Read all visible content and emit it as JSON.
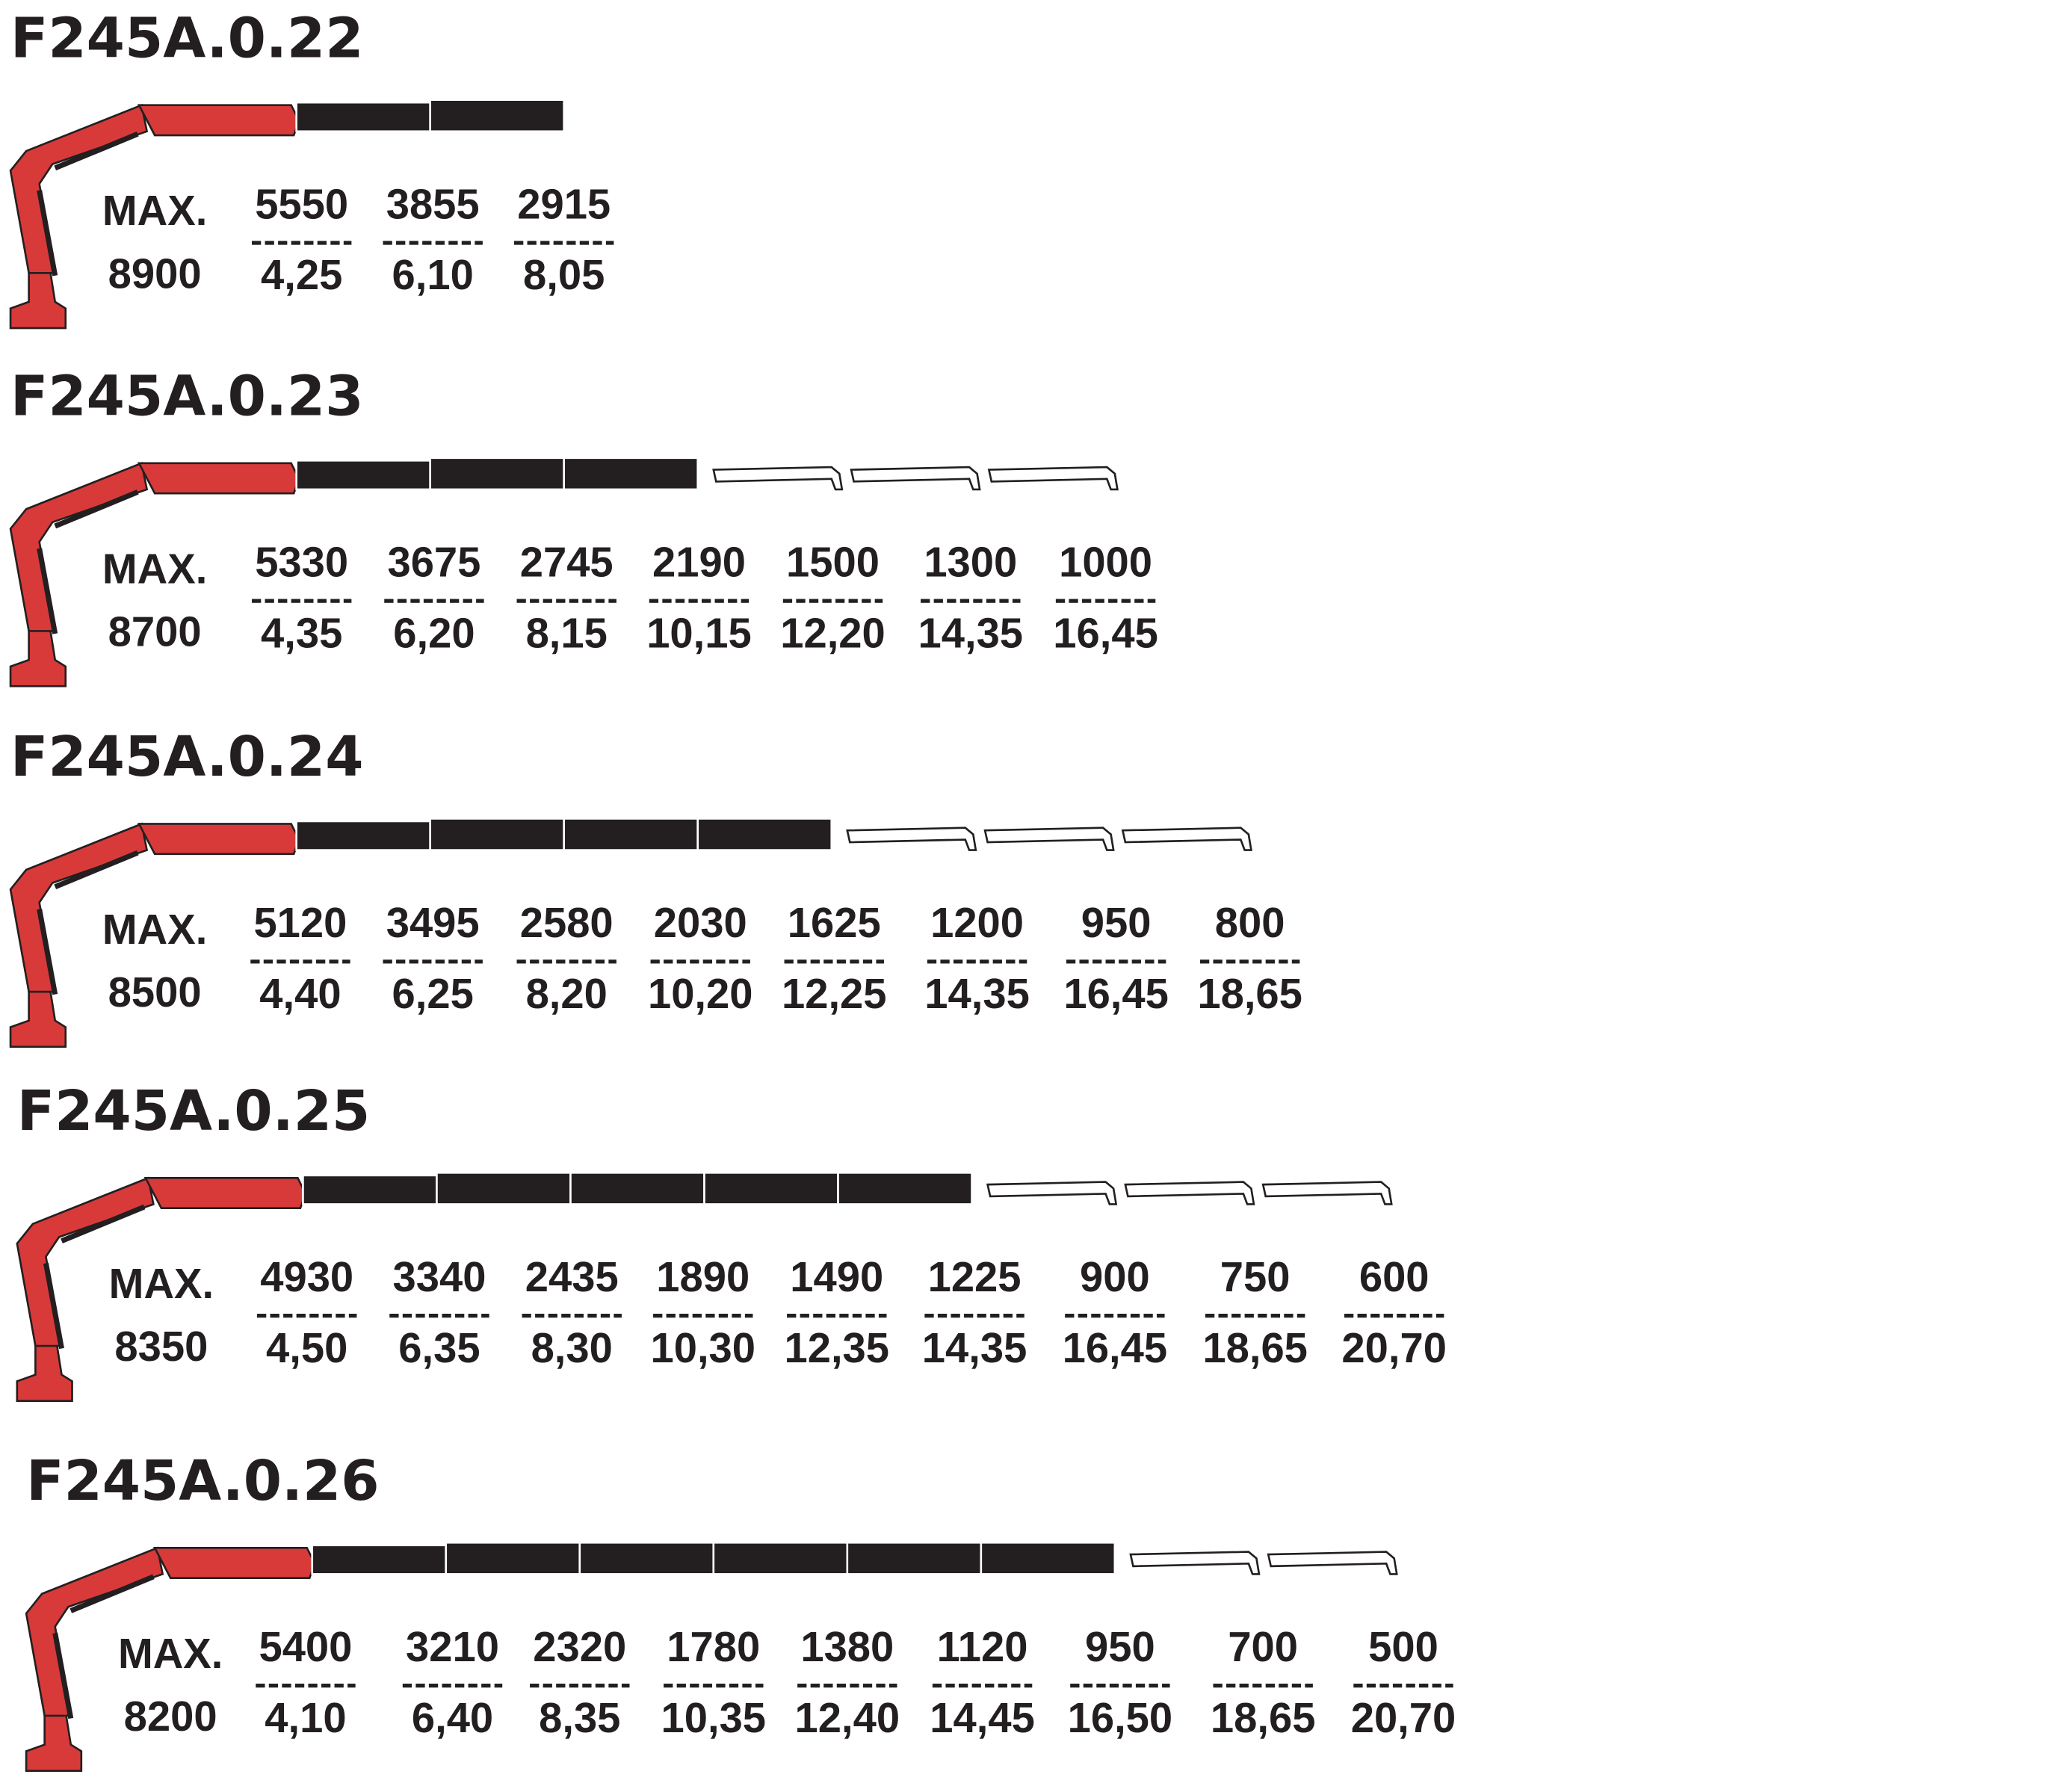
{
  "max_label": "MAX.",
  "models": [
    {
      "title": "F245A.0.22",
      "max": 8900,
      "loads": [
        5550,
        3855,
        2915
      ],
      "reaches": [
        "4,25",
        "6,10",
        "8,05"
      ]
    },
    {
      "title": "F245A.0.23",
      "max": 8700,
      "loads": [
        5330,
        3675,
        2745,
        2190,
        1500,
        1300,
        1000
      ],
      "reaches": [
        "4,35",
        "6,20",
        "8,15",
        "10,15",
        "12,20",
        "14,35",
        "16,45"
      ]
    },
    {
      "title": "F245A.0.24",
      "max": 8500,
      "loads": [
        5120,
        3495,
        2580,
        2030,
        1625,
        1200,
        950,
        800
      ],
      "reaches": [
        "4,40",
        "6,25",
        "8,20",
        "10,20",
        "12,25",
        "14,35",
        "16,45",
        "18,65"
      ]
    },
    {
      "title": "F245A.0.25",
      "max": 8350,
      "loads": [
        4930,
        3340,
        2435,
        1890,
        1490,
        1225,
        900,
        750,
        600
      ],
      "reaches": [
        "4,50",
        "6,35",
        "8,30",
        "10,30",
        "12,35",
        "14,35",
        "16,45",
        "18,65",
        "20,70"
      ]
    },
    {
      "title": "F245A.0.26",
      "max": 8200,
      "loads": [
        5400,
        3210,
        2320,
        1780,
        1380,
        1120,
        950,
        700,
        500
      ],
      "reaches": [
        "4,10",
        "6,40",
        "8,35",
        "10,35",
        "12,40",
        "14,45",
        "16,50",
        "18,65",
        "20,70"
      ]
    }
  ]
}
